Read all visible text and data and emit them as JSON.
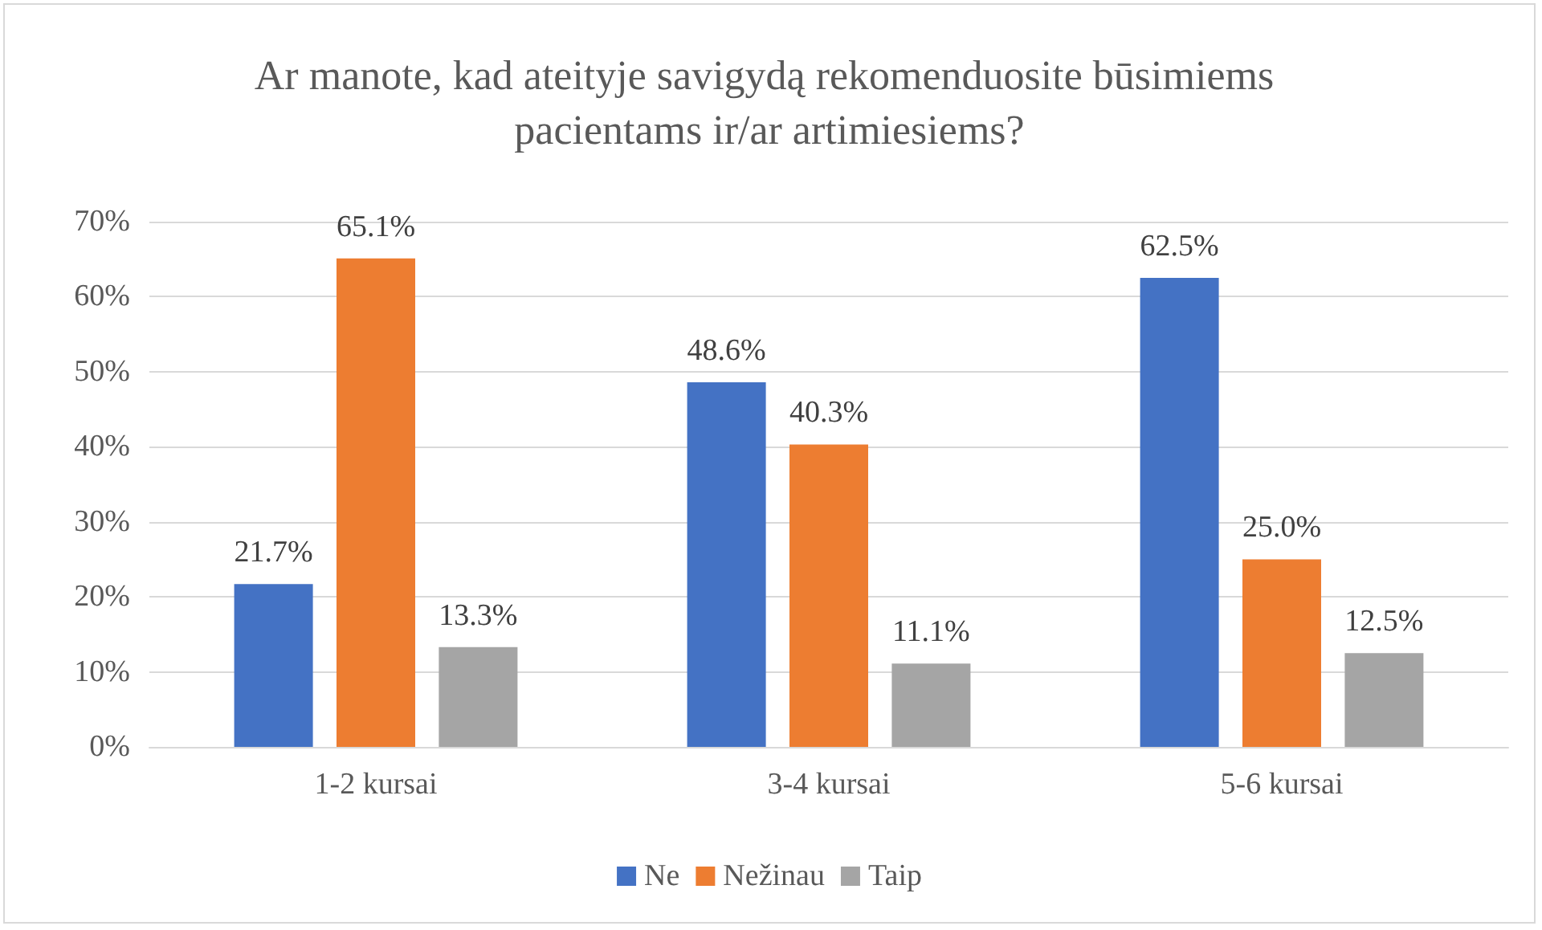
{
  "chart_data": {
    "type": "bar",
    "title": "Ar manote, kad ateityje savigydą rekomenduosite būsimiems pacientams ir/ar artimiesiems?",
    "categories": [
      "1-2 kursai",
      "3-4 kursai",
      "5-6 kursai"
    ],
    "series": [
      {
        "name": "Ne",
        "color": "#4472c4",
        "values": [
          21.7,
          48.6,
          62.5
        ],
        "value_labels": [
          "21.7%",
          "48.6%",
          "62.5%"
        ]
      },
      {
        "name": "Nežinau",
        "color": "#ed7d31",
        "values": [
          65.1,
          40.3,
          25.0
        ],
        "value_labels": [
          "65.1%",
          "40.3%",
          "25.0%"
        ]
      },
      {
        "name": "Taip",
        "color": "#a5a5a5",
        "values": [
          13.3,
          11.1,
          12.5
        ],
        "value_labels": [
          "13.3%",
          "11.1%",
          "12.5%"
        ]
      }
    ],
    "ylim": [
      0,
      70
    ],
    "yticks": [
      {
        "value": 0,
        "label": "0%"
      },
      {
        "value": 10,
        "label": "10%"
      },
      {
        "value": 20,
        "label": "20%"
      },
      {
        "value": 30,
        "label": "30%"
      },
      {
        "value": 40,
        "label": "40%"
      },
      {
        "value": 50,
        "label": "50%"
      },
      {
        "value": 60,
        "label": "60%"
      },
      {
        "value": 70,
        "label": "70%"
      }
    ],
    "grid": "y",
    "legend": "bottom"
  }
}
